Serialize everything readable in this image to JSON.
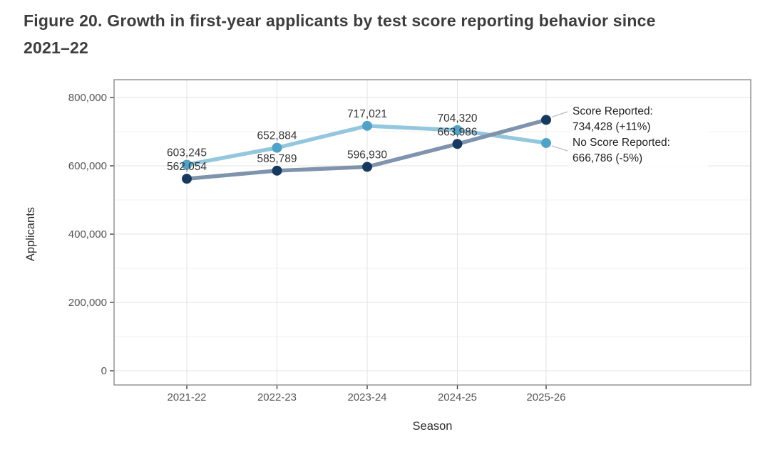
{
  "figure": {
    "title_lines": {
      "line1": "Figure 20. Growth in first-year applicants by test score reporting behavior since",
      "line2": "2021–22"
    }
  },
  "chart_data": {
    "type": "line",
    "x": [
      "2021-22",
      "2022-23",
      "2023-24",
      "2024-25",
      "2025-26"
    ],
    "xlabel": "Season",
    "ylabel": "Applicants",
    "ylim": [
      0,
      800000
    ],
    "y_major_ticks": [
      0,
      200000,
      400000,
      600000,
      800000
    ],
    "y_tick_labels": [
      "0",
      "200,000",
      "400,000",
      "600,000",
      "800,000"
    ],
    "y_minor_ticks": [
      100000,
      300000,
      500000,
      700000
    ],
    "grid": true,
    "legend_position": "right-end-annotations",
    "series": [
      {
        "name": "No Score Reported",
        "values": [
          603245,
          652884,
          717021,
          704320,
          666786
        ],
        "point_labels": [
          "603,245",
          "652,884",
          "717,021",
          "704,320",
          null
        ],
        "line_color": "#93c7dd",
        "marker_color": "#4fa3c8"
      },
      {
        "name": "Score Reported",
        "values": [
          562054,
          585789,
          596930,
          663986,
          734428
        ],
        "point_labels": [
          "562,054",
          "585,789",
          "596,930",
          "663,986",
          null
        ],
        "line_color": "#8093ac",
        "marker_color": "#16395f"
      }
    ],
    "annotations": [
      {
        "series": "Score Reported",
        "lines": [
          "Score Reported:",
          "734,428 (+11%)"
        ]
      },
      {
        "series": "No Score Reported",
        "lines": [
          "No Score Reported:",
          "666,786 (-5%)"
        ]
      }
    ],
    "style": {
      "panel_border": "#8d8d8d",
      "grid_major": "#e3e3e3",
      "grid_minor": "#f2f2f2",
      "tick_color": "#333333",
      "axis_text": "#565656",
      "axis_title_text": "#2f2f2f",
      "data_label_text": "#333333",
      "annotation_text": "#222222",
      "leader_line": "#bbbbbb"
    }
  }
}
